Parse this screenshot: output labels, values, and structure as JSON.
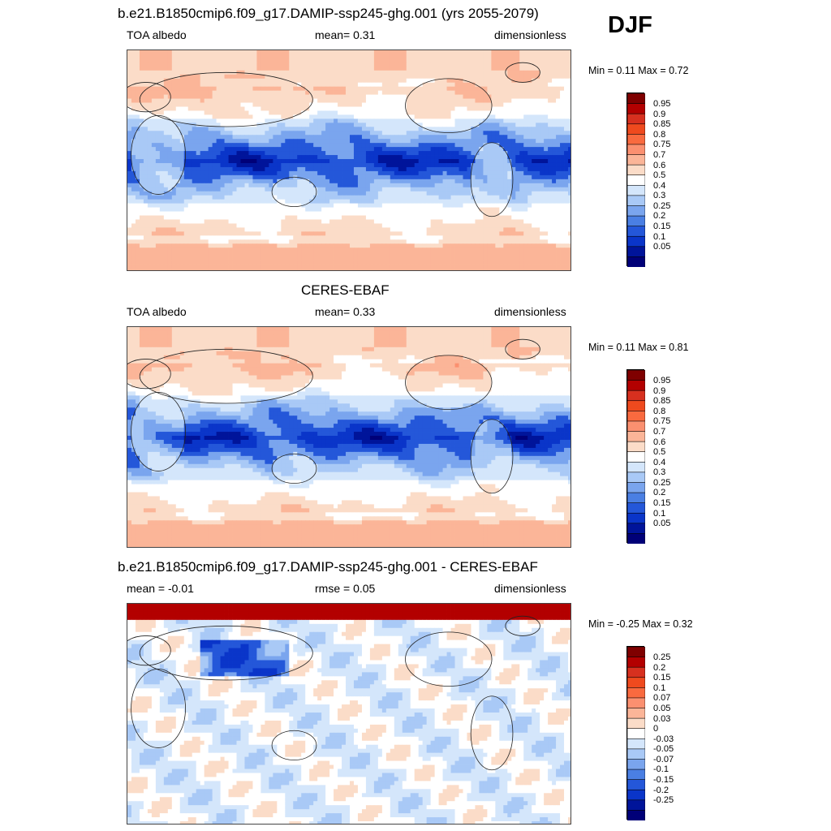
{
  "season": "DJF",
  "panels": [
    {
      "id": "model",
      "title": "b.e21.B1850cmip6.f09_g17.DAMIP-ssp245-ghg.001 (yrs 2055-2079)",
      "left_label": "TOA albedo",
      "center_label": "mean=   0.31",
      "right_label": "dimensionless",
      "minmax": "Min =   0.11 Max =   0.72",
      "field": "albedo",
      "variant": 0,
      "levels": [
        "0.95",
        "0.9",
        "0.85",
        "0.8",
        "0.75",
        "0.7",
        "0.6",
        "0.5",
        "0.4",
        "0.3",
        "0.25",
        "0.2",
        "0.15",
        "0.1",
        "0.05"
      ]
    },
    {
      "id": "obs",
      "title": "CERES-EBAF",
      "left_label": "TOA albedo",
      "center_label": "mean=   0.33",
      "right_label": "dimensionless",
      "minmax": "Min =   0.11 Max =   0.81",
      "field": "albedo",
      "variant": 1,
      "levels": [
        "0.95",
        "0.9",
        "0.85",
        "0.8",
        "0.75",
        "0.7",
        "0.6",
        "0.5",
        "0.4",
        "0.3",
        "0.25",
        "0.2",
        "0.15",
        "0.1",
        "0.05"
      ]
    },
    {
      "id": "diff",
      "title": "b.e21.B1850cmip6.f09_g17.DAMIP-ssp245-ghg.001 - CERES-EBAF",
      "left_label": "mean =  -0.01",
      "center_label": "rmse =   0.05",
      "right_label": "dimensionless",
      "minmax": "Min =  -0.25 Max =   0.32",
      "field": "diff",
      "variant": 2,
      "levels": [
        "0.25",
        "0.2",
        "0.15",
        "0.1",
        "0.07",
        "0.05",
        "0.03",
        "0",
        "-0.03",
        "-0.05",
        "-0.07",
        "-0.1",
        "-0.15",
        "-0.2",
        "-0.25"
      ]
    }
  ],
  "colormap": [
    "#7f0000",
    "#b30000",
    "#d7301f",
    "#ef4a1e",
    "#f96a3f",
    "#fb9070",
    "#fbb598",
    "#fbdcc8",
    "#ffffff",
    "#d4e6fb",
    "#a9c9f6",
    "#7aa5ee",
    "#4a7fe3",
    "#2457d9",
    "#0a35c9",
    "#00149a",
    "#000078"
  ]
}
